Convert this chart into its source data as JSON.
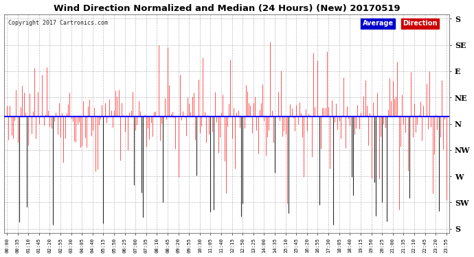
{
  "title": "Wind Direction Normalized and Median (24 Hours) (New) 20170519",
  "copyright": "Copyright 2017 Cartronics.com",
  "background_color": "#ffffff",
  "plot_bg_color": "#ffffff",
  "grid_color": "#aaaaaa",
  "line_color_red": "#ff0000",
  "line_color_black": "#1a1a1a",
  "avg_line_color": "#0000ff",
  "avg_line_value": 0.535,
  "ytick_labels": [
    "S",
    "SE",
    "E",
    "NE",
    "N",
    "NW",
    "W",
    "SW",
    "S"
  ],
  "ytick_values": [
    1.0,
    0.875,
    0.75,
    0.625,
    0.5,
    0.375,
    0.25,
    0.125,
    0.0
  ],
  "ylim": [
    -0.02,
    1.02
  ],
  "legend_avg_bg": "#0000cc",
  "legend_dir_bg": "#cc0000",
  "legend_text_avg": "Average",
  "legend_text_dir": "Direction",
  "num_points": 288,
  "seed": 42
}
